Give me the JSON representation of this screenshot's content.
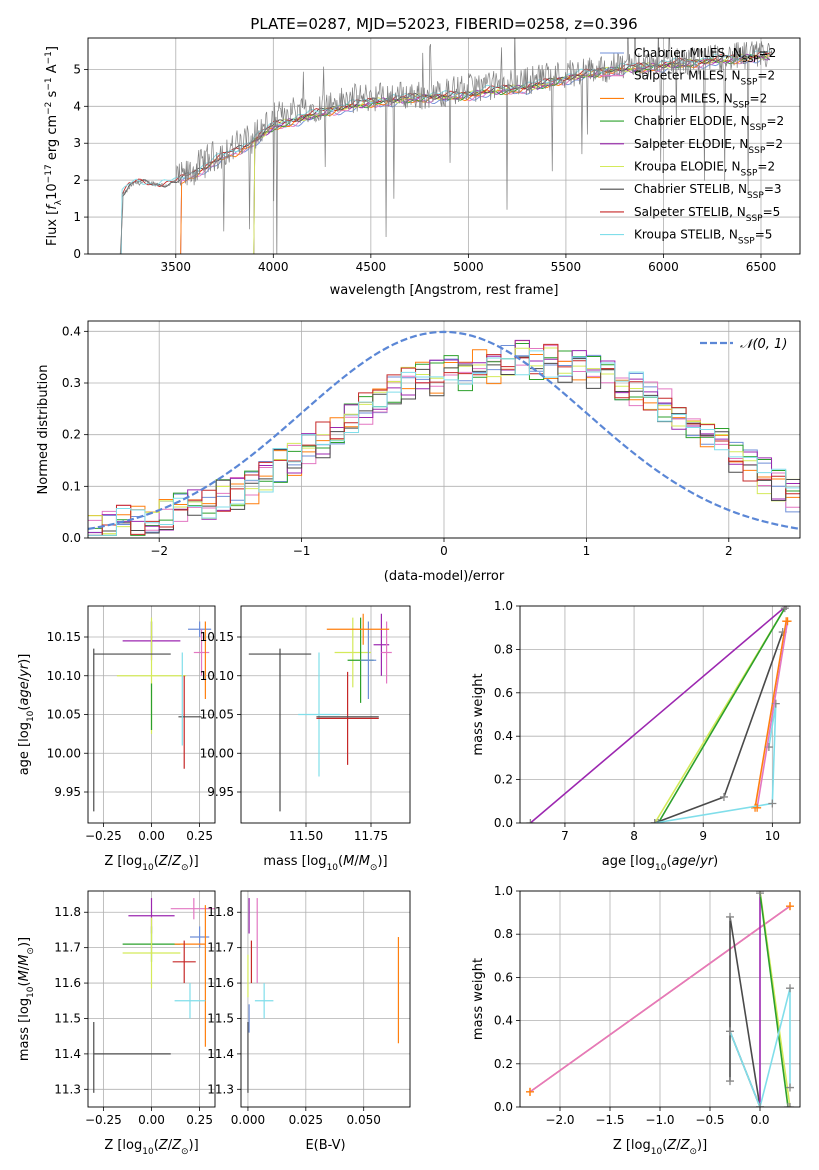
{
  "figure_title": "PLATE=0287, MJD=52023, FIBERID=0258, z=0.396",
  "colors": {
    "Chabrier MILES": "#6f8fd8",
    "Salpeter MILES": "#e377c2",
    "Kroupa MILES": "#ff7f0e",
    "Chabrier ELODIE": "#2ca02c",
    "Salpeter ELODIE": "#9c27b0",
    "Kroupa ELODIE": "#d4ea5a",
    "Chabrier STELIB": "#4a4a4a",
    "Salpeter STELIB": "#c62828",
    "Kroupa STELIB": "#80deea",
    "data": "#808080",
    "normal": "#5b87d6"
  },
  "chart_data": [
    {
      "id": "spectrum",
      "type": "line",
      "xlabel": "wavelength [Angstrom, rest frame]",
      "ylabel_main": "Flux [",
      "ylabel_parts": [
        "f",
        "λ",
        "10",
        "−17",
        " erg cm",
        "−2",
        " s",
        "−1",
        " A",
        "−1",
        "]"
      ],
      "xlim": [
        3050,
        6700
      ],
      "ylim": [
        0,
        5.85
      ],
      "xticks": [
        3500,
        4000,
        4500,
        5000,
        5500,
        6000,
        6500
      ],
      "yticks": [
        0,
        1,
        2,
        3,
        4,
        5
      ],
      "legend_position": "upper right",
      "data_series": {
        "name": "data",
        "x": [
          3230,
          3280,
          3350,
          3450,
          3550,
          3650,
          3750,
          3850,
          3950,
          4000,
          4100,
          4250,
          4400,
          4600,
          4800,
          5000,
          5200,
          5400,
          5600,
          5800,
          6000,
          6200,
          6400,
          6550
        ],
        "y": [
          1.6,
          1.9,
          1.95,
          1.85,
          2.1,
          2.5,
          2.8,
          3.0,
          3.4,
          3.7,
          3.9,
          4.0,
          4.2,
          4.3,
          4.3,
          4.5,
          4.6,
          4.8,
          4.95,
          5.1,
          5.15,
          5.25,
          5.35,
          5.4
        ]
      },
      "series": [
        {
          "name": "Chabrier MILES",
          "nssp": "2",
          "start": 3525
        },
        {
          "name": "Salpeter MILES",
          "nssp": "2",
          "start": 3525
        },
        {
          "name": "Kroupa MILES",
          "nssp": "2",
          "start": 3525
        },
        {
          "name": "Chabrier ELODIE",
          "nssp": "2",
          "start": 3900
        },
        {
          "name": "Salpeter ELODIE",
          "nssp": "2",
          "start": 3900
        },
        {
          "name": "Kroupa ELODIE",
          "nssp": "2",
          "start": 3900
        },
        {
          "name": "Chabrier STELIB",
          "nssp": "3",
          "start": 3220
        },
        {
          "name": "Salpeter STELIB",
          "nssp": "5",
          "start": 3220
        },
        {
          "name": "Kroupa STELIB",
          "nssp": "5",
          "start": 3220
        }
      ],
      "model": {
        "x": [
          3220,
          3260,
          3300,
          3400,
          3500,
          3600,
          3700,
          3800,
          3900,
          4000,
          4100,
          4200,
          4300,
          4400,
          4500,
          4600,
          4700,
          4800,
          4900,
          5000,
          5100,
          5200,
          5300,
          5400,
          5500,
          5600,
          5700,
          5800,
          5900,
          6000,
          6100,
          6200,
          6300,
          6400,
          6500,
          6550
        ],
        "y": [
          1.55,
          1.8,
          1.9,
          1.85,
          1.9,
          2.2,
          2.5,
          2.75,
          3.05,
          3.45,
          3.6,
          3.75,
          3.9,
          4.0,
          4.1,
          4.15,
          4.2,
          4.25,
          4.25,
          4.3,
          4.4,
          4.45,
          4.5,
          4.6,
          4.75,
          4.85,
          4.95,
          5.0,
          5.05,
          5.1,
          5.15,
          5.2,
          5.25,
          5.3,
          5.35,
          5.35
        ]
      }
    },
    {
      "id": "residuals",
      "type": "line",
      "xlabel": "(data-model)/error",
      "ylabel": "Normed distribution",
      "xlim": [
        -2.5,
        2.5
      ],
      "ylim": [
        0,
        0.42
      ],
      "xticks": [
        -2,
        -1,
        0,
        1,
        2
      ],
      "yticks": [
        0.0,
        0.1,
        0.2,
        0.3,
        0.4
      ],
      "legend_label": "𝒩(0, 1)",
      "legend_position": "upper right",
      "bin_width": 0.1,
      "base_hist": [
        0.02,
        0.02,
        0.03,
        0.03,
        0.04,
        0.05,
        0.06,
        0.06,
        0.07,
        0.08,
        0.09,
        0.1,
        0.12,
        0.14,
        0.15,
        0.17,
        0.19,
        0.21,
        0.23,
        0.25,
        0.27,
        0.29,
        0.3,
        0.31,
        0.31,
        0.32,
        0.32,
        0.33,
        0.33,
        0.34,
        0.35,
        0.34,
        0.34,
        0.33,
        0.33,
        0.32,
        0.31,
        0.3,
        0.29,
        0.27,
        0.26,
        0.24,
        0.22,
        0.2,
        0.18,
        0.16,
        0.14,
        0.12,
        0.1,
        0.08
      ]
    },
    {
      "id": "age-vs-Z",
      "type": "scatter",
      "xlabel": "Z [log",
      "ylabel": "age  [log",
      "xlim": [
        -0.33,
        0.33
      ],
      "ylim": [
        9.91,
        10.19
      ],
      "xticks": [
        -0.25,
        0.0,
        0.25
      ],
      "xticklabels": [
        "−0.25",
        "0.00",
        "0.25"
      ],
      "yticks": [
        9.95,
        10.0,
        10.05,
        10.1,
        10.15
      ],
      "points": [
        {
          "s": "Chabrier MILES",
          "x": 0.25,
          "y": 10.16,
          "xerr": 0.06,
          "yerr": 0.01
        },
        {
          "s": "Salpeter MILES",
          "x": 0.26,
          "y": 10.13,
          "xerr": 0.04,
          "yerr": 0.03
        },
        {
          "s": "Kroupa MILES",
          "x": 0.28,
          "y": 10.12,
          "xerr": 0.0,
          "yerr": 0.05
        },
        {
          "s": "Chabrier ELODIE",
          "x": 0.0,
          "y": 10.15,
          "xerr": 0.0,
          "yerr": 0.02
        },
        {
          "s": "Salpeter ELODIE",
          "x": 0.0,
          "y": 10.145,
          "xerr": 0.15,
          "yerr": 0.025
        },
        {
          "s": "Kroupa ELODIE",
          "x": 0.0,
          "y": 10.1,
          "xerr": 0.18,
          "yerr": 0.075
        },
        {
          "s": "Chabrier STELIB",
          "x": -0.3,
          "y": 10.03,
          "xerr": 0.0,
          "yerr": 0.105
        },
        {
          "s": "Chabrier STELIB",
          "x": -0.1,
          "y": 10.128,
          "xerr": 0.2,
          "yerr": 0.0
        },
        {
          "s": "Salpeter STELIB",
          "x": 0.17,
          "y": 10.04,
          "xerr": 0.0,
          "yerr": 0.06
        },
        {
          "s": "Chabrier STELIB",
          "x": 0.2,
          "y": 10.047,
          "xerr": 0.06,
          "yerr": 0.0
        },
        {
          "s": "Kroupa STELIB",
          "x": 0.16,
          "y": 10.07,
          "xerr": 0.0,
          "yerr": 0.06
        },
        {
          "s": "Chabrier ELODIE",
          "x": 0.0,
          "y": 10.06,
          "xerr": 0.0,
          "yerr": 0.03
        }
      ]
    },
    {
      "id": "age-vs-mass",
      "type": "scatter",
      "xlabel": "mass [log",
      "ylabel": "",
      "xlim": [
        11.25,
        11.9
      ],
      "ylim": [
        9.91,
        10.19
      ],
      "xticks": [
        11.5,
        11.75
      ],
      "xticklabels": [
        "11.50",
        "11.75"
      ],
      "yticks": [
        9.95,
        10.0,
        10.05,
        10.1,
        10.15
      ],
      "points": [
        {
          "s": "Chabrier STELIB",
          "x": 11.4,
          "y": 10.128,
          "xerr": 0.12,
          "yerr": 0.0
        },
        {
          "s": "Chabrier STELIB",
          "x": 11.4,
          "y": 10.03,
          "xerr": 0.0,
          "yerr": 0.105
        },
        {
          "s": "Kroupa STELIB",
          "x": 11.55,
          "y": 10.05,
          "xerr": 0.08,
          "yerr": 0.08
        },
        {
          "s": "Salpeter STELIB",
          "x": 11.66,
          "y": 10.045,
          "xerr": 0.12,
          "yerr": 0.06
        },
        {
          "s": "Chabrier STELIB",
          "x": 11.66,
          "y": 10.047,
          "xerr": 0.12,
          "yerr": 0.0
        },
        {
          "s": "Kroupa ELODIE",
          "x": 11.68,
          "y": 10.13,
          "xerr": 0.07,
          "yerr": 0.045
        },
        {
          "s": "Chabrier ELODIE",
          "x": 11.71,
          "y": 10.12,
          "xerr": 0.05,
          "yerr": 0.055
        },
        {
          "s": "Chabrier MILES",
          "x": 11.74,
          "y": 10.12,
          "xerr": 0.03,
          "yerr": 0.05
        },
        {
          "s": "Salpeter ELODIE",
          "x": 11.79,
          "y": 10.14,
          "xerr": 0.03,
          "yerr": 0.04
        },
        {
          "s": "Salpeter MILES",
          "x": 11.81,
          "y": 10.13,
          "xerr": 0.02,
          "yerr": 0.04
        },
        {
          "s": "Kroupa MILES",
          "x": 11.7,
          "y": 10.16,
          "xerr": 0.12,
          "yerr": 0.0
        },
        {
          "s": "Kroupa MILES",
          "x": 11.72,
          "y": 10.16,
          "xerr": 0.0,
          "yerr": 0.02
        }
      ]
    },
    {
      "id": "weight-vs-age",
      "type": "line",
      "xlabel": "age  [log",
      "ylabel": "mass weight",
      "xlim": [
        6.35,
        10.4
      ],
      "ylim": [
        0,
        1.0
      ],
      "xticks": [
        7,
        8,
        9,
        10
      ],
      "yticks": [
        0.0,
        0.2,
        0.4,
        0.6,
        0.8,
        1.0
      ],
      "lines": [
        {
          "s": "Salpeter ELODIE",
          "x": [
            6.5,
            10.2
          ],
          "y": [
            0.0,
            1.0
          ]
        },
        {
          "s": "Kroupa ELODIE",
          "x": [
            8.3,
            10.2
          ],
          "y": [
            0.0,
            1.0
          ]
        },
        {
          "s": "Chabrier ELODIE",
          "x": [
            8.35,
            10.18
          ],
          "y": [
            0.0,
            0.99
          ]
        },
        {
          "s": "Chabrier STELIB",
          "x": [
            8.3,
            9.3,
            10.15
          ],
          "y": [
            0.0,
            0.12,
            0.88
          ]
        },
        {
          "s": "Kroupa MILES",
          "x": [
            9.75,
            10.2
          ],
          "y": [
            0.07,
            0.93
          ]
        },
        {
          "s": "Kroupa STELIB",
          "x": [
            8.3,
            10.0,
            10.05,
            9.95
          ],
          "y": [
            0.0,
            0.09,
            0.55,
            0.35
          ]
        },
        {
          "s": "Salpeter MILES",
          "x": [
            9.78,
            10.22
          ],
          "y": [
            0.07,
            0.93
          ]
        }
      ]
    },
    {
      "id": "mass-vs-Z",
      "type": "scatter",
      "xlabel": "Z [log",
      "ylabel": "mass [log",
      "xlim": [
        -0.33,
        0.33
      ],
      "ylim": [
        11.25,
        11.86
      ],
      "xticks": [
        -0.25,
        0.0,
        0.25
      ],
      "xticklabels": [
        "−0.25",
        "0.00",
        "0.25"
      ],
      "yticks": [
        11.3,
        11.4,
        11.5,
        11.6,
        11.7,
        11.8
      ],
      "points": [
        {
          "s": "Chabrier STELIB",
          "x": -0.3,
          "y": 11.39,
          "xerr": 0.0,
          "yerr": 0.1
        },
        {
          "s": "Chabrier STELIB",
          "x": -0.1,
          "y": 11.4,
          "xerr": 0.2,
          "yerr": 0.0
        },
        {
          "s": "Salpeter ELODIE",
          "x": 0.0,
          "y": 11.79,
          "xerr": 0.12,
          "yerr": 0.05
        },
        {
          "s": "Chabrier ELODIE",
          "x": 0.0,
          "y": 11.71,
          "xerr": 0.15,
          "yerr": 0.05
        },
        {
          "s": "Kroupa ELODIE",
          "x": 0.0,
          "y": 11.685,
          "xerr": 0.15,
          "yerr": 0.1
        },
        {
          "s": "Salpeter MILES",
          "x": 0.22,
          "y": 11.81,
          "xerr": 0.12,
          "yerr": 0.03
        },
        {
          "s": "Chabrier MILES",
          "x": 0.25,
          "y": 11.73,
          "xerr": 0.05,
          "yerr": 0.03
        },
        {
          "s": "Kroupa MILES",
          "x": 0.28,
          "y": 11.62,
          "xerr": 0.0,
          "yerr": 0.2
        },
        {
          "s": "Kroupa MILES",
          "x": 0.2,
          "y": 11.71,
          "xerr": 0.08,
          "yerr": 0.0
        },
        {
          "s": "Salpeter STELIB",
          "x": 0.17,
          "y": 11.66,
          "xerr": 0.06,
          "yerr": 0.06
        },
        {
          "s": "Kroupa STELIB",
          "x": 0.2,
          "y": 11.55,
          "xerr": 0.08,
          "yerr": 0.05
        }
      ]
    },
    {
      "id": "mass-vs-ebv",
      "type": "scatter",
      "xlabel": "E(B-V)",
      "ylabel": "",
      "xlim": [
        -0.003,
        0.07
      ],
      "ylim": [
        11.25,
        11.86
      ],
      "xticks": [
        0.0,
        0.025,
        0.05
      ],
      "xticklabels": [
        "0.000",
        "0.025",
        "0.050"
      ],
      "yticks": [
        11.3,
        11.4,
        11.5,
        11.6,
        11.7,
        11.8
      ],
      "points": [
        {
          "s": "Chabrier STELIB",
          "x": 0.0,
          "y": 11.39,
          "xerr": 0.0,
          "yerr": 0.1
        },
        {
          "s": "Salpeter ELODIE",
          "x": 0.0005,
          "y": 11.79,
          "xerr": 0.0,
          "yerr": 0.05
        },
        {
          "s": "Salpeter MILES",
          "x": 0.004,
          "y": 11.72,
          "xerr": 0.0,
          "yerr": 0.12
        },
        {
          "s": "Salpeter STELIB",
          "x": 0.0015,
          "y": 11.66,
          "xerr": 0.0,
          "yerr": 0.06
        },
        {
          "s": "Kroupa ELODIE",
          "x": 0.0,
          "y": 11.62,
          "xerr": 0.0,
          "yerr": 0.06
        },
        {
          "s": "Kroupa STELIB",
          "x": 0.007,
          "y": 11.55,
          "xerr": 0.004,
          "yerr": 0.05
        },
        {
          "s": "Chabrier MILES",
          "x": 0.0005,
          "y": 11.5,
          "xerr": 0.0,
          "yerr": 0.04
        },
        {
          "s": "Kroupa MILES",
          "x": 0.065,
          "y": 11.58,
          "xerr": 0.0,
          "yerr": 0.15
        }
      ]
    },
    {
      "id": "weight-vs-Z",
      "type": "line",
      "xlabel": "Z [log",
      "ylabel": "mass weight",
      "xlim": [
        -2.4,
        0.4
      ],
      "ylim": [
        0,
        1.0
      ],
      "xticks": [
        -2.0,
        -1.5,
        -1.0,
        -0.5,
        0.0
      ],
      "xticklabels": [
        "−2.0",
        "−1.5",
        "−1.0",
        "−0.5",
        "0.0"
      ],
      "yticks": [
        0.0,
        0.2,
        0.4,
        0.6,
        0.8,
        1.0
      ],
      "lines": [
        {
          "s": "Kroupa MILES",
          "x": [
            -2.3,
            0.3
          ],
          "y": [
            0.07,
            0.93
          ]
        },
        {
          "s": "Salpeter MILES",
          "x": [
            -2.3,
            0.3
          ],
          "y": [
            0.07,
            0.93
          ]
        },
        {
          "s": "Chabrier STELIB",
          "x": [
            -0.3,
            -0.3,
            0.0,
            -0.3
          ],
          "y": [
            0.12,
            0.88,
            0.0,
            0.35
          ]
        },
        {
          "s": "Salpeter ELODIE",
          "x": [
            0.0,
            0.0
          ],
          "y": [
            0.0,
            1.0
          ]
        },
        {
          "s": "Kroupa ELODIE",
          "x": [
            0.0,
            0.3
          ],
          "y": [
            1.0,
            0.0
          ]
        },
        {
          "s": "Chabrier ELODIE",
          "x": [
            0.0,
            0.28
          ],
          "y": [
            0.99,
            0.0
          ]
        },
        {
          "s": "Kroupa STELIB",
          "x": [
            -0.3,
            0.0,
            0.3,
            0.3
          ],
          "y": [
            0.35,
            0.0,
            0.55,
            0.09
          ]
        }
      ]
    }
  ],
  "subscript_sun": "⊙",
  "ssp_label": "N",
  "ssp_sub": "SSP"
}
